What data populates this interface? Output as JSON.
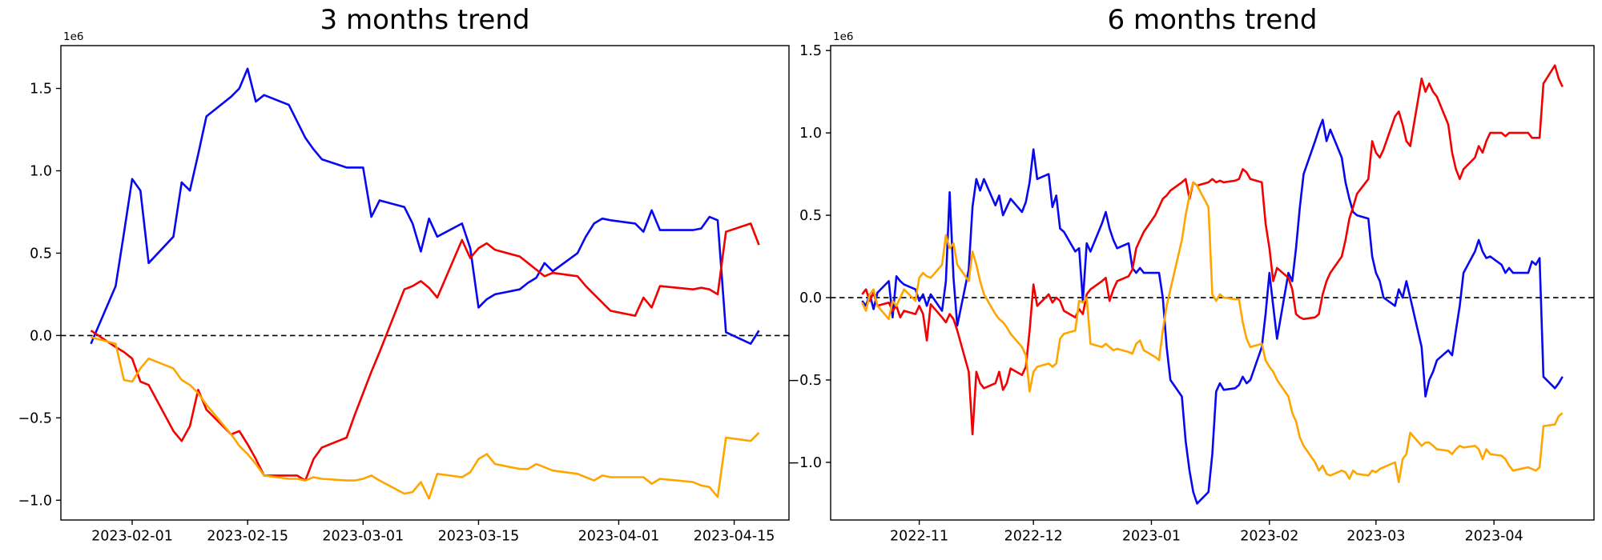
{
  "figure": {
    "background": "#ffffff",
    "axis_color": "#000000",
    "zero_line": {
      "style": "dashed",
      "color": "#000000"
    }
  },
  "chart_data": [
    {
      "type": "line",
      "title": "3 months trend",
      "offset_label": "1e6",
      "unit": "1e6",
      "grid": false,
      "legend": "none",
      "ylim": [
        -1.12,
        1.76
      ],
      "yticks": [
        {
          "v": 1.5,
          "label": "1.5"
        },
        {
          "v": 1.0,
          "label": "1.0"
        },
        {
          "v": 0.5,
          "label": "0.5"
        },
        {
          "v": 0.0,
          "label": "0.0"
        },
        {
          "v": -0.5,
          "label": "−0.5"
        },
        {
          "v": -1.0,
          "label": "−1.0"
        }
      ],
      "xticks": [
        {
          "date": "2023-02-01",
          "label": "2023-02-01"
        },
        {
          "date": "2023-02-15",
          "label": "2023-02-15"
        },
        {
          "date": "2023-03-01",
          "label": "2023-03-01"
        },
        {
          "date": "2023-03-15",
          "label": "2023-03-15"
        },
        {
          "date": "2023-04-01",
          "label": "2023-04-01"
        },
        {
          "date": "2023-04-15",
          "label": "2023-04-15"
        }
      ],
      "x_dates": [
        "2023-01-27",
        "2023-01-30",
        "2023-01-31",
        "2023-02-01",
        "2023-02-02",
        "2023-02-03",
        "2023-02-06",
        "2023-02-07",
        "2023-02-08",
        "2023-02-09",
        "2023-02-10",
        "2023-02-13",
        "2023-02-14",
        "2023-02-15",
        "2023-02-16",
        "2023-02-17",
        "2023-02-20",
        "2023-02-21",
        "2023-02-22",
        "2023-02-23",
        "2023-02-24",
        "2023-02-27",
        "2023-02-28",
        "2023-03-01",
        "2023-03-02",
        "2023-03-03",
        "2023-03-06",
        "2023-03-07",
        "2023-03-08",
        "2023-03-09",
        "2023-03-10",
        "2023-03-13",
        "2023-03-14",
        "2023-03-15",
        "2023-03-16",
        "2023-03-17",
        "2023-03-20",
        "2023-03-21",
        "2023-03-22",
        "2023-03-23",
        "2023-03-24",
        "2023-03-27",
        "2023-03-28",
        "2023-03-29",
        "2023-03-30",
        "2023-03-31",
        "2023-04-03",
        "2023-04-04",
        "2023-04-05",
        "2023-04-06",
        "2023-04-10",
        "2023-04-11",
        "2023-04-12",
        "2023-04-13",
        "2023-04-14",
        "2023-04-17",
        "2023-04-18"
      ],
      "series": [
        {
          "name": "blue",
          "color": "#0707f2",
          "values": [
            -0.05,
            0.3,
            0.62,
            0.95,
            0.88,
            0.44,
            0.6,
            0.93,
            0.88,
            1.1,
            1.33,
            1.45,
            1.5,
            1.62,
            1.42,
            1.46,
            1.4,
            1.3,
            1.2,
            1.13,
            1.07,
            1.02,
            1.02,
            1.02,
            0.72,
            0.82,
            0.78,
            0.68,
            0.51,
            0.71,
            0.6,
            0.68,
            0.53,
            0.17,
            0.22,
            0.25,
            0.28,
            0.32,
            0.35,
            0.44,
            0.39,
            0.5,
            0.6,
            0.68,
            0.71,
            0.7,
            0.68,
            0.63,
            0.76,
            0.64,
            0.64,
            0.65,
            0.72,
            0.7,
            0.02,
            -0.05,
            0.03
          ]
        },
        {
          "name": "red",
          "color": "#f40000",
          "values": [
            0.03,
            -0.07,
            -0.1,
            -0.14,
            -0.28,
            -0.3,
            -0.58,
            -0.64,
            -0.55,
            -0.33,
            -0.45,
            -0.6,
            -0.58,
            -0.66,
            -0.75,
            -0.85,
            -0.85,
            -0.85,
            -0.88,
            -0.75,
            -0.68,
            -0.62,
            -0.48,
            -0.35,
            -0.22,
            -0.1,
            0.28,
            0.3,
            0.33,
            0.29,
            0.23,
            0.58,
            0.47,
            0.53,
            0.56,
            0.52,
            0.48,
            0.44,
            0.4,
            0.36,
            0.38,
            0.36,
            0.3,
            0.25,
            0.2,
            0.15,
            0.12,
            0.23,
            0.17,
            0.3,
            0.28,
            0.29,
            0.28,
            0.25,
            0.63,
            0.68,
            0.55
          ]
        },
        {
          "name": "orange",
          "color": "#ffa500",
          "values": [
            -0.01,
            -0.05,
            -0.27,
            -0.28,
            -0.2,
            -0.14,
            -0.2,
            -0.27,
            -0.3,
            -0.35,
            -0.42,
            -0.6,
            -0.67,
            -0.72,
            -0.78,
            -0.85,
            -0.87,
            -0.87,
            -0.88,
            -0.86,
            -0.87,
            -0.88,
            -0.88,
            -0.87,
            -0.85,
            -0.88,
            -0.96,
            -0.95,
            -0.89,
            -0.99,
            -0.84,
            -0.86,
            -0.83,
            -0.75,
            -0.72,
            -0.78,
            -0.81,
            -0.81,
            -0.78,
            -0.8,
            -0.82,
            -0.84,
            -0.86,
            -0.88,
            -0.85,
            -0.86,
            -0.86,
            -0.86,
            -0.9,
            -0.87,
            -0.89,
            -0.91,
            -0.92,
            -0.98,
            -0.62,
            -0.64,
            -0.59
          ]
        }
      ]
    },
    {
      "type": "line",
      "title": "6 months trend",
      "offset_label": "1e6",
      "unit": "1e6",
      "grid": false,
      "legend": "none",
      "ylim": [
        -1.35,
        1.53
      ],
      "yticks": [
        {
          "v": 1.5,
          "label": "1.5"
        },
        {
          "v": 1.0,
          "label": "1.0"
        },
        {
          "v": 0.5,
          "label": "0.5"
        },
        {
          "v": 0.0,
          "label": "0.0"
        },
        {
          "v": -0.5,
          "label": "−0.5"
        },
        {
          "v": -1.0,
          "label": "−1.0"
        }
      ],
      "xticks": [
        {
          "date": "2022-11-01",
          "label": "2022-11"
        },
        {
          "date": "2022-12-01",
          "label": "2022-12"
        },
        {
          "date": "2023-01-01",
          "label": "2023-01"
        },
        {
          "date": "2023-02-01",
          "label": "2023-02"
        },
        {
          "date": "2023-03-01",
          "label": "2023-03"
        },
        {
          "date": "2023-04-01",
          "label": "2023-04"
        }
      ],
      "x_dates": [
        "2022-10-17",
        "2022-10-18",
        "2022-10-19",
        "2022-10-20",
        "2022-10-21",
        "2022-10-24",
        "2022-10-25",
        "2022-10-26",
        "2022-10-27",
        "2022-10-28",
        "2022-10-31",
        "2022-11-01",
        "2022-11-02",
        "2022-11-03",
        "2022-11-04",
        "2022-11-07",
        "2022-11-08",
        "2022-11-09",
        "2022-11-10",
        "2022-11-11",
        "2022-11-14",
        "2022-11-15",
        "2022-11-16",
        "2022-11-17",
        "2022-11-18",
        "2022-11-21",
        "2022-11-22",
        "2022-11-23",
        "2022-11-24",
        "2022-11-25",
        "2022-11-28",
        "2022-11-29",
        "2022-11-30",
        "2022-12-01",
        "2022-12-02",
        "2022-12-05",
        "2022-12-06",
        "2022-12-07",
        "2022-12-08",
        "2022-12-09",
        "2022-12-12",
        "2022-12-13",
        "2022-12-14",
        "2022-12-15",
        "2022-12-16",
        "2022-12-19",
        "2022-12-20",
        "2022-12-21",
        "2022-12-22",
        "2022-12-23",
        "2022-12-26",
        "2022-12-27",
        "2022-12-28",
        "2022-12-29",
        "2022-12-30",
        "2023-01-02",
        "2023-01-03",
        "2023-01-04",
        "2023-01-05",
        "2023-01-06",
        "2023-01-09",
        "2023-01-10",
        "2023-01-11",
        "2023-01-12",
        "2023-01-13",
        "2023-01-16",
        "2023-01-17",
        "2023-01-18",
        "2023-01-19",
        "2023-01-20",
        "2023-01-23",
        "2023-01-24",
        "2023-01-25",
        "2023-01-26",
        "2023-01-27",
        "2023-01-30",
        "2023-01-31",
        "2023-02-01",
        "2023-02-02",
        "2023-02-03",
        "2023-02-06",
        "2023-02-07",
        "2023-02-08",
        "2023-02-09",
        "2023-02-10",
        "2023-02-13",
        "2023-02-14",
        "2023-02-15",
        "2023-02-16",
        "2023-02-17",
        "2023-02-20",
        "2023-02-21",
        "2023-02-22",
        "2023-02-23",
        "2023-02-24",
        "2023-02-27",
        "2023-02-28",
        "2023-03-01",
        "2023-03-02",
        "2023-03-03",
        "2023-03-06",
        "2023-03-07",
        "2023-03-08",
        "2023-03-09",
        "2023-03-10",
        "2023-03-13",
        "2023-03-14",
        "2023-03-15",
        "2023-03-16",
        "2023-03-17",
        "2023-03-20",
        "2023-03-21",
        "2023-03-22",
        "2023-03-23",
        "2023-03-24",
        "2023-03-27",
        "2023-03-28",
        "2023-03-29",
        "2023-03-30",
        "2023-03-31",
        "2023-04-03",
        "2023-04-04",
        "2023-04-05",
        "2023-04-06",
        "2023-04-10",
        "2023-04-11",
        "2023-04-12",
        "2023-04-13",
        "2023-04-14",
        "2023-04-17",
        "2023-04-18",
        "2023-04-19"
      ],
      "series": [
        {
          "name": "blue",
          "color": "#0707f2",
          "values": [
            -0.02,
            -0.05,
            0.02,
            -0.07,
            0.03,
            0.1,
            -0.12,
            0.13,
            0.1,
            0.08,
            0.05,
            -0.02,
            0.02,
            -0.05,
            0.02,
            -0.08,
            0.1,
            0.64,
            0.12,
            -0.17,
            0.17,
            0.55,
            0.72,
            0.65,
            0.72,
            0.56,
            0.62,
            0.5,
            0.55,
            0.6,
            0.52,
            0.58,
            0.7,
            0.9,
            0.72,
            0.75,
            0.55,
            0.62,
            0.42,
            0.4,
            0.28,
            0.3,
            -0.02,
            0.33,
            0.28,
            0.45,
            0.52,
            0.42,
            0.35,
            0.3,
            0.33,
            0.18,
            0.15,
            0.18,
            0.15,
            0.15,
            0.15,
            0.0,
            -0.3,
            -0.5,
            -0.6,
            -0.87,
            -1.05,
            -1.18,
            -1.25,
            -1.18,
            -0.95,
            -0.57,
            -0.52,
            -0.56,
            -0.55,
            -0.53,
            -0.48,
            -0.52,
            -0.5,
            -0.3,
            -0.1,
            0.15,
            -0.05,
            -0.25,
            0.15,
            0.1,
            0.3,
            0.55,
            0.75,
            0.95,
            1.02,
            1.08,
            0.95,
            1.02,
            0.85,
            0.7,
            0.6,
            0.52,
            0.5,
            0.48,
            0.25,
            0.15,
            0.1,
            0.0,
            -0.05,
            0.05,
            0.0,
            0.1,
            0.0,
            -0.3,
            -0.6,
            -0.5,
            -0.45,
            -0.38,
            -0.32,
            -0.35,
            -0.2,
            -0.05,
            0.15,
            0.28,
            0.35,
            0.28,
            0.24,
            0.25,
            0.2,
            0.15,
            0.18,
            0.15,
            0.15,
            0.22,
            0.2,
            0.24,
            -0.48,
            -0.55,
            -0.52,
            -0.48
          ]
        },
        {
          "name": "red",
          "color": "#f40000",
          "values": [
            0.02,
            0.05,
            -0.02,
            0.03,
            -0.05,
            -0.03,
            -0.08,
            -0.05,
            -0.12,
            -0.08,
            -0.1,
            -0.05,
            -0.1,
            -0.26,
            -0.04,
            -0.12,
            -0.15,
            -0.1,
            -0.13,
            -0.2,
            -0.45,
            -0.83,
            -0.45,
            -0.52,
            -0.55,
            -0.52,
            -0.45,
            -0.56,
            -0.52,
            -0.43,
            -0.47,
            -0.42,
            -0.2,
            0.08,
            -0.05,
            0.02,
            -0.03,
            0.0,
            -0.02,
            -0.08,
            -0.12,
            -0.07,
            -0.1,
            0.02,
            0.05,
            0.1,
            0.12,
            -0.02,
            0.05,
            0.1,
            0.13,
            0.17,
            0.3,
            0.35,
            0.4,
            0.5,
            0.55,
            0.6,
            0.62,
            0.65,
            0.7,
            0.72,
            0.6,
            0.7,
            0.68,
            0.7,
            0.72,
            0.7,
            0.71,
            0.7,
            0.71,
            0.72,
            0.78,
            0.76,
            0.72,
            0.7,
            0.45,
            0.3,
            0.1,
            0.18,
            0.12,
            0.05,
            -0.1,
            -0.12,
            -0.13,
            -0.12,
            -0.1,
            0.02,
            0.1,
            0.15,
            0.25,
            0.35,
            0.48,
            0.55,
            0.63,
            0.72,
            0.95,
            0.88,
            0.85,
            0.9,
            1.1,
            1.13,
            1.05,
            0.95,
            0.92,
            1.33,
            1.25,
            1.3,
            1.25,
            1.22,
            1.05,
            0.88,
            0.78,
            0.72,
            0.78,
            0.85,
            0.92,
            0.88,
            0.95,
            1.0,
            1.0,
            0.98,
            1.0,
            1.0,
            1.0,
            0.97,
            0.97,
            0.97,
            1.3,
            1.41,
            1.33,
            1.28
          ]
        },
        {
          "name": "orange",
          "color": "#ffa500",
          "values": [
            -0.03,
            -0.08,
            0.02,
            0.05,
            -0.05,
            -0.13,
            -0.02,
            -0.05,
            0.0,
            0.05,
            -0.02,
            0.12,
            0.15,
            0.13,
            0.12,
            0.2,
            0.38,
            0.3,
            0.33,
            0.2,
            0.1,
            0.28,
            0.2,
            0.1,
            0.02,
            -0.1,
            -0.13,
            -0.15,
            -0.18,
            -0.22,
            -0.3,
            -0.35,
            -0.57,
            -0.45,
            -0.42,
            -0.4,
            -0.42,
            -0.4,
            -0.25,
            -0.22,
            -0.2,
            -0.02,
            -0.03,
            0.0,
            -0.28,
            -0.3,
            -0.28,
            -0.3,
            -0.32,
            -0.31,
            -0.33,
            -0.34,
            -0.28,
            -0.26,
            -0.32,
            -0.36,
            -0.38,
            -0.2,
            -0.05,
            0.05,
            0.35,
            0.5,
            0.62,
            0.7,
            0.68,
            0.55,
            0.02,
            -0.02,
            0.02,
            0.0,
            -0.01,
            -0.01,
            -0.15,
            -0.25,
            -0.3,
            -0.28,
            -0.38,
            -0.42,
            -0.45,
            -0.5,
            -0.6,
            -0.7,
            -0.75,
            -0.85,
            -0.9,
            -1.0,
            -1.05,
            -1.02,
            -1.07,
            -1.08,
            -1.05,
            -1.06,
            -1.1,
            -1.05,
            -1.07,
            -1.08,
            -1.05,
            -1.06,
            -1.04,
            -1.03,
            -1.0,
            -1.12,
            -0.98,
            -0.95,
            -0.82,
            -0.9,
            -0.88,
            -0.88,
            -0.9,
            -0.92,
            -0.93,
            -0.95,
            -0.92,
            -0.9,
            -0.91,
            -0.9,
            -0.92,
            -0.98,
            -0.92,
            -0.95,
            -0.96,
            -0.98,
            -1.02,
            -1.05,
            -1.03,
            -1.04,
            -1.05,
            -1.03,
            -0.78,
            -0.77,
            -0.72,
            -0.7
          ]
        }
      ]
    }
  ]
}
